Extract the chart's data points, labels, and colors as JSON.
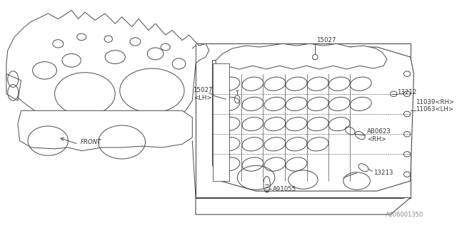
{
  "bg_color": "#ffffff",
  "line_color": "#4a4a4a",
  "text_color": "#333333",
  "part_number": "A006001350",
  "figsize": [
    6.4,
    3.2
  ],
  "dpi": 100,
  "labels": {
    "15027_LH": "15027\n<LH>",
    "15027_top": "15027",
    "13212": "13212",
    "11039_11063": "11039<RH>\n11063<LH>",
    "AB0623": "AB0623\n<RH>",
    "13213": "13213",
    "A91055": "A91055",
    "FRONT": "FRONT"
  }
}
